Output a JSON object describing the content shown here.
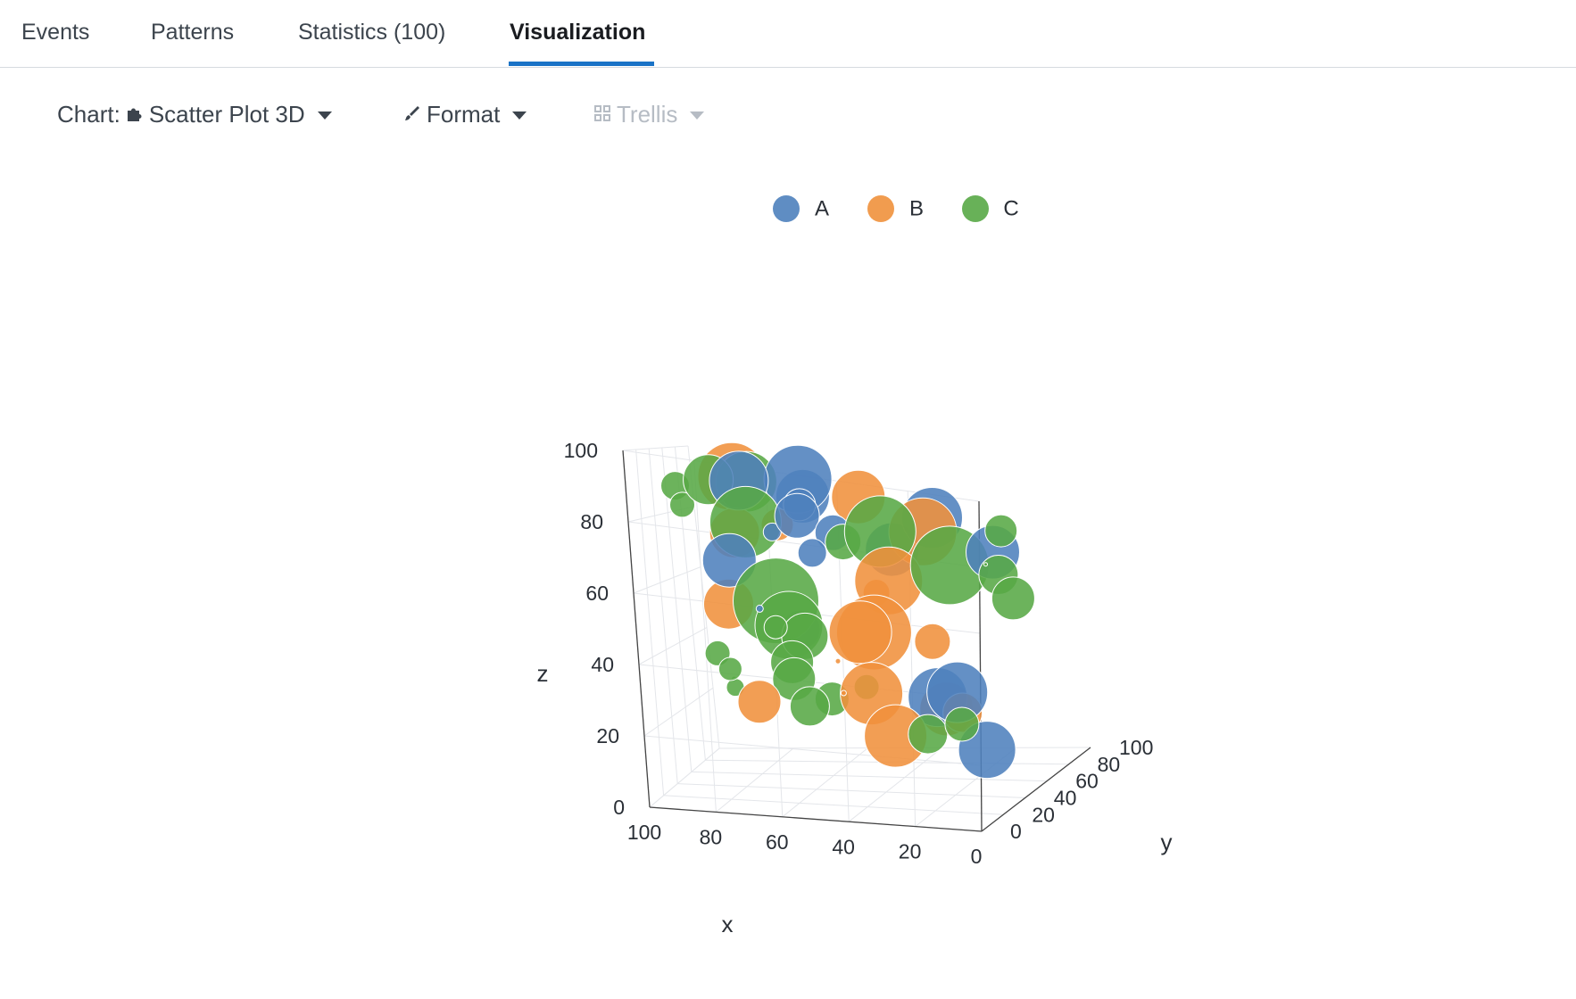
{
  "tabs": [
    {
      "label": "Events",
      "active": false
    },
    {
      "label": "Patterns",
      "active": false
    },
    {
      "label": "Statistics (100)",
      "active": false
    },
    {
      "label": "Visualization",
      "active": true
    }
  ],
  "toolbar": {
    "chart_label": "Chart:",
    "chart_icon": "puzzle-icon",
    "chart_value": "Scatter Plot 3D",
    "format_label": "Format",
    "format_icon": "brush-icon",
    "trellis_label": "Trellis",
    "trellis_icon": "grid-icon",
    "trellis_enabled": false
  },
  "colors": {
    "A": "#4e81bd",
    "B": "#f0913c",
    "C": "#58a846",
    "accent": "#1a73c7"
  },
  "chart_data": {
    "type": "scatter",
    "legend": [
      "A",
      "B",
      "C"
    ],
    "legend_position": "top",
    "axes": {
      "x": {
        "label": "x",
        "range": [
          0,
          100
        ],
        "ticks": [
          "0",
          "20",
          "40",
          "60",
          "80",
          "100"
        ]
      },
      "y": {
        "label": "y",
        "range": [
          0,
          100
        ],
        "ticks": [
          "0",
          "20",
          "40",
          "60",
          "80",
          "100"
        ]
      },
      "z": {
        "label": "z",
        "range": [
          0,
          100
        ],
        "ticks": [
          "0",
          "20",
          "40",
          "60",
          "80",
          "100"
        ]
      }
    },
    "grid": true,
    "series": [
      {
        "name": "A",
        "points": [
          {
            "x": 55,
            "y": 15,
            "z": 97,
            "size": 38
          },
          {
            "x": 52,
            "y": 8,
            "z": 93,
            "size": 30
          },
          {
            "x": 15,
            "y": 5,
            "z": 92,
            "size": 34
          },
          {
            "x": 78,
            "y": 45,
            "z": 92,
            "size": 33
          },
          {
            "x": 28,
            "y": 10,
            "z": 80,
            "size": 30
          },
          {
            "x": 62,
            "y": 40,
            "z": 83,
            "size": 25
          },
          {
            "x": 60,
            "y": 35,
            "z": 87,
            "size": 18
          },
          {
            "x": 50,
            "y": 30,
            "z": 80,
            "size": 20
          },
          {
            "x": 10,
            "y": 40,
            "z": 76,
            "size": 30
          },
          {
            "x": 85,
            "y": 60,
            "z": 66,
            "size": 30
          },
          {
            "x": 60,
            "y": 30,
            "z": 50,
            "size": 22
          },
          {
            "x": 18,
            "y": 35,
            "z": 33,
            "size": 34
          },
          {
            "x": 25,
            "y": 40,
            "z": 30,
            "size": 33
          },
          {
            "x": 8,
            "y": 30,
            "z": 17,
            "size": 32
          },
          {
            "x": 62,
            "y": 55,
            "z": 70,
            "size": 16
          },
          {
            "x": 70,
            "y": 45,
            "z": 77,
            "size": 10
          },
          {
            "x": 80,
            "y": 70,
            "z": 50,
            "size": 4
          }
        ]
      },
      {
        "name": "B",
        "points": [
          {
            "x": 72,
            "y": 10,
            "z": 96,
            "size": 38
          },
          {
            "x": 40,
            "y": 20,
            "z": 93,
            "size": 30
          },
          {
            "x": 20,
            "y": 12,
            "z": 86,
            "size": 38
          },
          {
            "x": 65,
            "y": 30,
            "z": 81,
            "size": 18
          },
          {
            "x": 80,
            "y": 45,
            "z": 76,
            "size": 28
          },
          {
            "x": 38,
            "y": 40,
            "z": 65,
            "size": 38
          },
          {
            "x": 40,
            "y": 35,
            "z": 62,
            "size": 15
          },
          {
            "x": 85,
            "y": 55,
            "z": 53,
            "size": 28
          },
          {
            "x": 45,
            "y": 50,
            "z": 47,
            "size": 42
          },
          {
            "x": 50,
            "y": 55,
            "z": 46,
            "size": 35
          },
          {
            "x": 32,
            "y": 60,
            "z": 43,
            "size": 20
          },
          {
            "x": 15,
            "y": 30,
            "z": 28,
            "size": 22
          },
          {
            "x": 18,
            "y": 25,
            "z": 30,
            "size": 30
          },
          {
            "x": 50,
            "y": 65,
            "z": 25,
            "size": 35
          },
          {
            "x": 85,
            "y": 85,
            "z": 18,
            "size": 24
          },
          {
            "x": 48,
            "y": 82,
            "z": 8,
            "size": 35
          },
          {
            "x": 60,
            "y": 75,
            "z": 23,
            "size": 3
          },
          {
            "x": 60,
            "y": 70,
            "z": 34,
            "size": 3
          }
        ]
      },
      {
        "name": "C",
        "points": [
          {
            "x": 68,
            "y": 10,
            "z": 95,
            "size": 34
          },
          {
            "x": 85,
            "y": 40,
            "z": 92,
            "size": 28
          },
          {
            "x": 92,
            "y": 30,
            "z": 90,
            "size": 16
          },
          {
            "x": 92,
            "y": 38,
            "z": 84,
            "size": 14
          },
          {
            "x": 78,
            "y": 50,
            "z": 79,
            "size": 40
          },
          {
            "x": 40,
            "y": 40,
            "z": 80,
            "size": 40
          },
          {
            "x": 20,
            "y": 35,
            "z": 72,
            "size": 44
          },
          {
            "x": 10,
            "y": 45,
            "z": 68,
            "size": 22
          },
          {
            "x": 50,
            "y": 40,
            "z": 76,
            "size": 20
          },
          {
            "x": 70,
            "y": 45,
            "z": 56,
            "size": 48
          },
          {
            "x": 68,
            "y": 50,
            "z": 48,
            "size": 38
          },
          {
            "x": 10,
            "y": 58,
            "z": 58,
            "size": 24
          },
          {
            "x": 65,
            "y": 55,
            "z": 44,
            "size": 26
          },
          {
            "x": 20,
            "y": 80,
            "z": 75,
            "size": 18
          },
          {
            "x": 75,
            "y": 65,
            "z": 45,
            "size": 13
          },
          {
            "x": 90,
            "y": 60,
            "z": 37,
            "size": 14
          },
          {
            "x": 70,
            "y": 60,
            "z": 35,
            "size": 24
          },
          {
            "x": 90,
            "y": 75,
            "z": 30,
            "size": 13
          },
          {
            "x": 72,
            "y": 70,
            "z": 28,
            "size": 24
          },
          {
            "x": 50,
            "y": 60,
            "z": 28,
            "size": 14
          },
          {
            "x": 88,
            "y": 70,
            "z": 25,
            "size": 10
          },
          {
            "x": 62,
            "y": 70,
            "z": 22,
            "size": 19
          },
          {
            "x": 70,
            "y": 78,
            "z": 18,
            "size": 22
          },
          {
            "x": 30,
            "y": 82,
            "z": 12,
            "size": 19
          },
          {
            "x": 40,
            "y": 85,
            "z": 8,
            "size": 22
          },
          {
            "x": 85,
            "y": 55,
            "z": 30,
            "size": 3
          },
          {
            "x": 18,
            "y": 60,
            "z": 68,
            "size": 2
          }
        ]
      }
    ]
  }
}
